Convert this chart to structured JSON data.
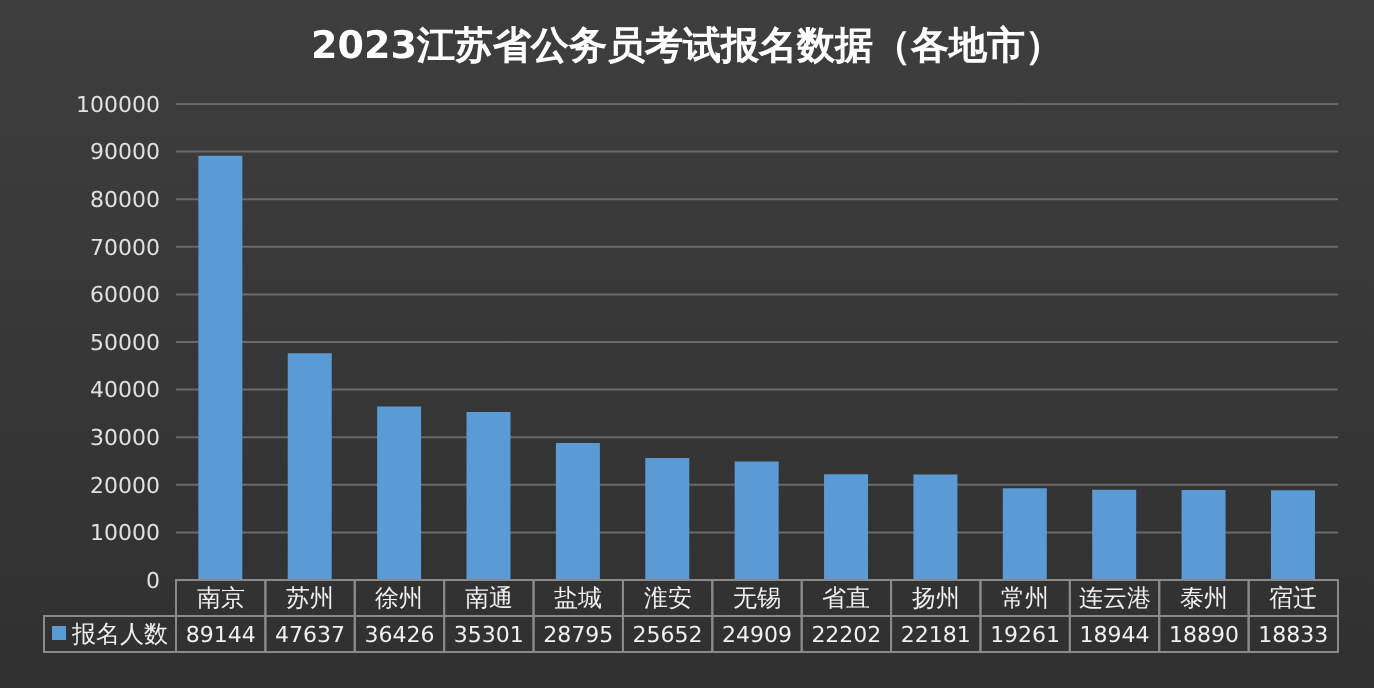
{
  "chart_data": {
    "type": "bar",
    "title": "2023江苏省公务员考试报名数据（各地市）",
    "categories": [
      "南京",
      "苏州",
      "徐州",
      "南通",
      "盐城",
      "淮安",
      "无锡",
      "省直",
      "扬州",
      "常州",
      "连云港",
      "泰州",
      "宿迁"
    ],
    "series": [
      {
        "name": "报名人数",
        "color": "#5b9bd5",
        "values": [
          89144,
          47637,
          36426,
          35301,
          28795,
          25652,
          24909,
          22202,
          22181,
          19261,
          18944,
          18890,
          18833
        ]
      }
    ],
    "ylim": [
      0,
      100000
    ],
    "yticks": [
      0,
      10000,
      20000,
      30000,
      40000,
      50000,
      60000,
      70000,
      80000,
      90000,
      100000
    ],
    "grid": "y",
    "data_labels": true
  }
}
